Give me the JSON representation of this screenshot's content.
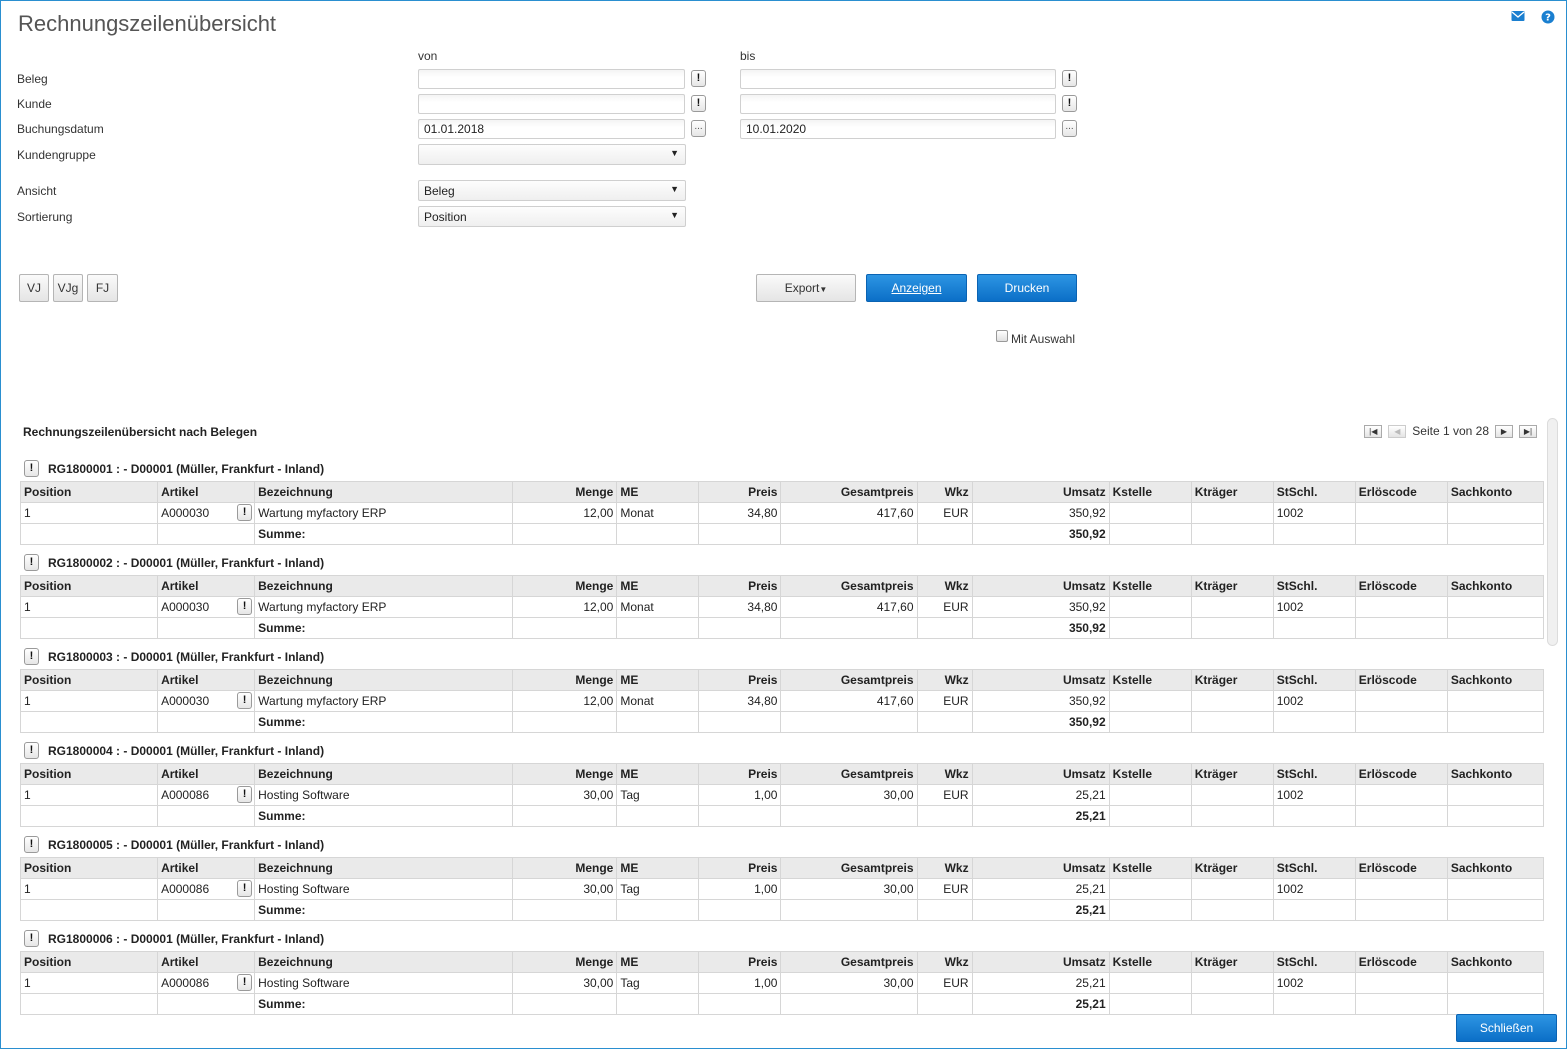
{
  "page": {
    "title": "Rechnungszeilenübersicht"
  },
  "icons": {
    "mail": "mail-icon",
    "help": "help-icon"
  },
  "filter": {
    "col_from": "von",
    "col_to": "bis",
    "beleg": {
      "label": "Beleg",
      "from": "",
      "to": ""
    },
    "kunde": {
      "label": "Kunde",
      "from": "",
      "to": ""
    },
    "buchungsdatum": {
      "label": "Buchungsdatum",
      "from": "01.01.2018",
      "to": "10.01.2020"
    },
    "kundengruppe": {
      "label": "Kundengruppe",
      "value": ""
    },
    "ansicht": {
      "label": "Ansicht",
      "value": "Beleg"
    },
    "sortierung": {
      "label": "Sortierung",
      "value": "Position"
    },
    "lookup_glyph": "!",
    "date_glyph": "..."
  },
  "buttons": {
    "vj": "VJ",
    "vjg": "VJg",
    "fj": "FJ",
    "export": "Export",
    "anzeigen": "Anzeigen",
    "drucken": "Drucken",
    "mit_auswahl": "Mit Auswahl",
    "schliessen": "Schließen"
  },
  "report": {
    "title": "Rechnungszeilenübersicht nach Belegen",
    "pager": "Seite 1 von 28",
    "columns": [
      "Position",
      "Artikel",
      "Bezeichnung",
      "Menge",
      "ME",
      "Preis",
      "Gesamtpreis",
      "Wkz",
      "Umsatz",
      "Kstelle",
      "Kträger",
      "StSchl.",
      "Erlöscode",
      "Sachkonto"
    ],
    "sum_label": "Summe:",
    "groups": [
      {
        "header": "RG1800001 : - D00001 (Müller, Frankfurt - Inland)",
        "row": {
          "position": "1",
          "artikel": "A000030",
          "bezeichnung": "Wartung myfactory ERP",
          "menge": "12,00",
          "me": "Monat",
          "preis": "34,80",
          "gesamtpreis": "417,60",
          "wkz": "EUR",
          "umsatz": "350,92",
          "kstelle": "",
          "ktraeger": "",
          "stschl": "1002",
          "erloescode": "",
          "sachkonto": ""
        },
        "sum": "350,92"
      },
      {
        "header": "RG1800002 : - D00001 (Müller, Frankfurt - Inland)",
        "row": {
          "position": "1",
          "artikel": "A000030",
          "bezeichnung": "Wartung myfactory ERP",
          "menge": "12,00",
          "me": "Monat",
          "preis": "34,80",
          "gesamtpreis": "417,60",
          "wkz": "EUR",
          "umsatz": "350,92",
          "kstelle": "",
          "ktraeger": "",
          "stschl": "1002",
          "erloescode": "",
          "sachkonto": ""
        },
        "sum": "350,92"
      },
      {
        "header": "RG1800003 : - D00001 (Müller, Frankfurt - Inland)",
        "row": {
          "position": "1",
          "artikel": "A000030",
          "bezeichnung": "Wartung myfactory ERP",
          "menge": "12,00",
          "me": "Monat",
          "preis": "34,80",
          "gesamtpreis": "417,60",
          "wkz": "EUR",
          "umsatz": "350,92",
          "kstelle": "",
          "ktraeger": "",
          "stschl": "1002",
          "erloescode": "",
          "sachkonto": ""
        },
        "sum": "350,92"
      },
      {
        "header": "RG1800004 : - D00001 (Müller, Frankfurt - Inland)",
        "row": {
          "position": "1",
          "artikel": "A000086",
          "bezeichnung": "Hosting Software",
          "menge": "30,00",
          "me": "Tag",
          "preis": "1,00",
          "gesamtpreis": "30,00",
          "wkz": "EUR",
          "umsatz": "25,21",
          "kstelle": "",
          "ktraeger": "",
          "stschl": "1002",
          "erloescode": "",
          "sachkonto": ""
        },
        "sum": "25,21"
      },
      {
        "header": "RG1800005 : - D00001 (Müller, Frankfurt - Inland)",
        "row": {
          "position": "1",
          "artikel": "A000086",
          "bezeichnung": "Hosting Software",
          "menge": "30,00",
          "me": "Tag",
          "preis": "1,00",
          "gesamtpreis": "30,00",
          "wkz": "EUR",
          "umsatz": "25,21",
          "kstelle": "",
          "ktraeger": "",
          "stschl": "1002",
          "erloescode": "",
          "sachkonto": ""
        },
        "sum": "25,21"
      },
      {
        "header": "RG1800006 : - D00001 (Müller, Frankfurt - Inland)",
        "row": {
          "position": "1",
          "artikel": "A000086",
          "bezeichnung": "Hosting Software",
          "menge": "30,00",
          "me": "Tag",
          "preis": "1,00",
          "gesamtpreis": "30,00",
          "wkz": "EUR",
          "umsatz": "25,21",
          "kstelle": "",
          "ktraeger": "",
          "stschl": "1002",
          "erloescode": "",
          "sachkonto": ""
        },
        "sum": "25,21"
      }
    ]
  }
}
